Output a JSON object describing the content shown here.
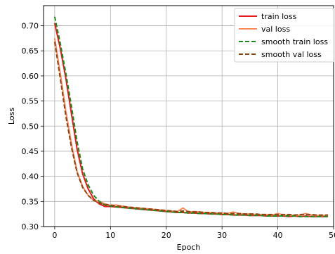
{
  "chart_data": {
    "type": "line",
    "xlabel": "Epoch",
    "ylabel": "Loss",
    "xlim": [
      -2,
      50
    ],
    "ylim": [
      0.3,
      0.74
    ],
    "x_ticks": [
      0,
      10,
      20,
      30,
      40,
      50
    ],
    "y_ticks": [
      0.3,
      0.35,
      0.4,
      0.45,
      0.5,
      0.55,
      0.6,
      0.65,
      0.7
    ],
    "grid": true,
    "legend_position": "top-right",
    "x": [
      0,
      1,
      2,
      3,
      4,
      5,
      6,
      7,
      8,
      9,
      10,
      11,
      12,
      13,
      14,
      15,
      16,
      17,
      18,
      19,
      20,
      21,
      22,
      23,
      24,
      25,
      26,
      27,
      28,
      29,
      30,
      31,
      32,
      33,
      34,
      35,
      36,
      37,
      38,
      39,
      40,
      41,
      42,
      43,
      44,
      45,
      46,
      47,
      48,
      49
    ],
    "series": [
      {
        "name": "train loss",
        "color": "#e41a1c",
        "style": "solid",
        "values": [
          0.705,
          0.655,
          0.595,
          0.525,
          0.455,
          0.405,
          0.375,
          0.355,
          0.345,
          0.34,
          0.34,
          0.339,
          0.338,
          0.337,
          0.336,
          0.335,
          0.334,
          0.333,
          0.332,
          0.331,
          0.33,
          0.329,
          0.328,
          0.328,
          0.327,
          0.327,
          0.326,
          0.326,
          0.325,
          0.325,
          0.324,
          0.324,
          0.323,
          0.323,
          0.323,
          0.322,
          0.322,
          0.322,
          0.321,
          0.321,
          0.321,
          0.321,
          0.32,
          0.321,
          0.32,
          0.321,
          0.32,
          0.32,
          0.32,
          0.32
        ]
      },
      {
        "name": "val loss",
        "color": "#fb8a5a",
        "style": "solid",
        "values": [
          0.675,
          0.605,
          0.53,
          0.465,
          0.41,
          0.38,
          0.362,
          0.352,
          0.35,
          0.345,
          0.342,
          0.343,
          0.341,
          0.339,
          0.338,
          0.337,
          0.336,
          0.335,
          0.334,
          0.333,
          0.332,
          0.331,
          0.33,
          0.337,
          0.329,
          0.33,
          0.329,
          0.328,
          0.328,
          0.327,
          0.327,
          0.326,
          0.329,
          0.326,
          0.325,
          0.325,
          0.324,
          0.324,
          0.324,
          0.323,
          0.326,
          0.323,
          0.323,
          0.322,
          0.323,
          0.326,
          0.323,
          0.322,
          0.322,
          0.322
        ]
      },
      {
        "name": "smooth train loss",
        "color": "#1a8a1a",
        "style": "dashed",
        "values": [
          0.718,
          0.665,
          0.605,
          0.54,
          0.47,
          0.415,
          0.383,
          0.362,
          0.35,
          0.343,
          0.341,
          0.339,
          0.338,
          0.337,
          0.336,
          0.335,
          0.334,
          0.333,
          0.332,
          0.331,
          0.33,
          0.329,
          0.328,
          0.328,
          0.327,
          0.327,
          0.326,
          0.326,
          0.325,
          0.325,
          0.324,
          0.324,
          0.323,
          0.323,
          0.323,
          0.322,
          0.322,
          0.322,
          0.321,
          0.321,
          0.321,
          0.321,
          0.321,
          0.321,
          0.32,
          0.32,
          0.32,
          0.32,
          0.32,
          0.32
        ]
      },
      {
        "name": "smooth val loss",
        "color": "#8b4513",
        "style": "dashed",
        "values": [
          0.668,
          0.595,
          0.52,
          0.458,
          0.408,
          0.378,
          0.362,
          0.352,
          0.347,
          0.344,
          0.343,
          0.341,
          0.34,
          0.339,
          0.338,
          0.337,
          0.336,
          0.335,
          0.334,
          0.333,
          0.332,
          0.331,
          0.33,
          0.331,
          0.33,
          0.329,
          0.329,
          0.328,
          0.328,
          0.327,
          0.327,
          0.326,
          0.326,
          0.326,
          0.325,
          0.325,
          0.325,
          0.324,
          0.324,
          0.324,
          0.324,
          0.324,
          0.324,
          0.323,
          0.324,
          0.324,
          0.324,
          0.323,
          0.323,
          0.323
        ]
      }
    ]
  }
}
